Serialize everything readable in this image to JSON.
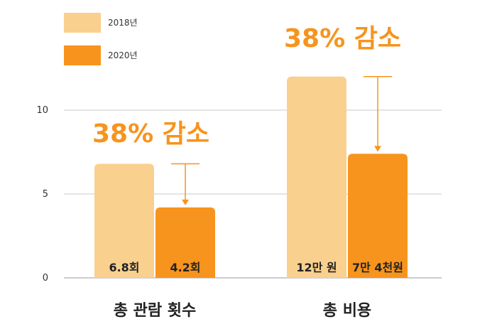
{
  "chart_data": {
    "type": "bar",
    "categories": [
      "총 관람 횟수",
      "총 비용"
    ],
    "series": [
      {
        "name": "2018년",
        "values": [
          6.8,
          12
        ],
        "labels": [
          "6.8회",
          "12만 원"
        ],
        "color": "#FAD08E"
      },
      {
        "name": "2020년",
        "values": [
          4.2,
          7.4
        ],
        "labels": [
          "4.2회",
          "7만 4천원"
        ],
        "color": "#F7941D"
      }
    ],
    "annotations": [
      "38% 감소",
      "38% 감소"
    ],
    "annotation_color": "#F7941D",
    "yticks": [
      0,
      5,
      10
    ],
    "ylim": [
      0,
      13
    ],
    "grid": true,
    "legend": "top-left",
    "title": "",
    "xlabel": "",
    "ylabel": ""
  }
}
